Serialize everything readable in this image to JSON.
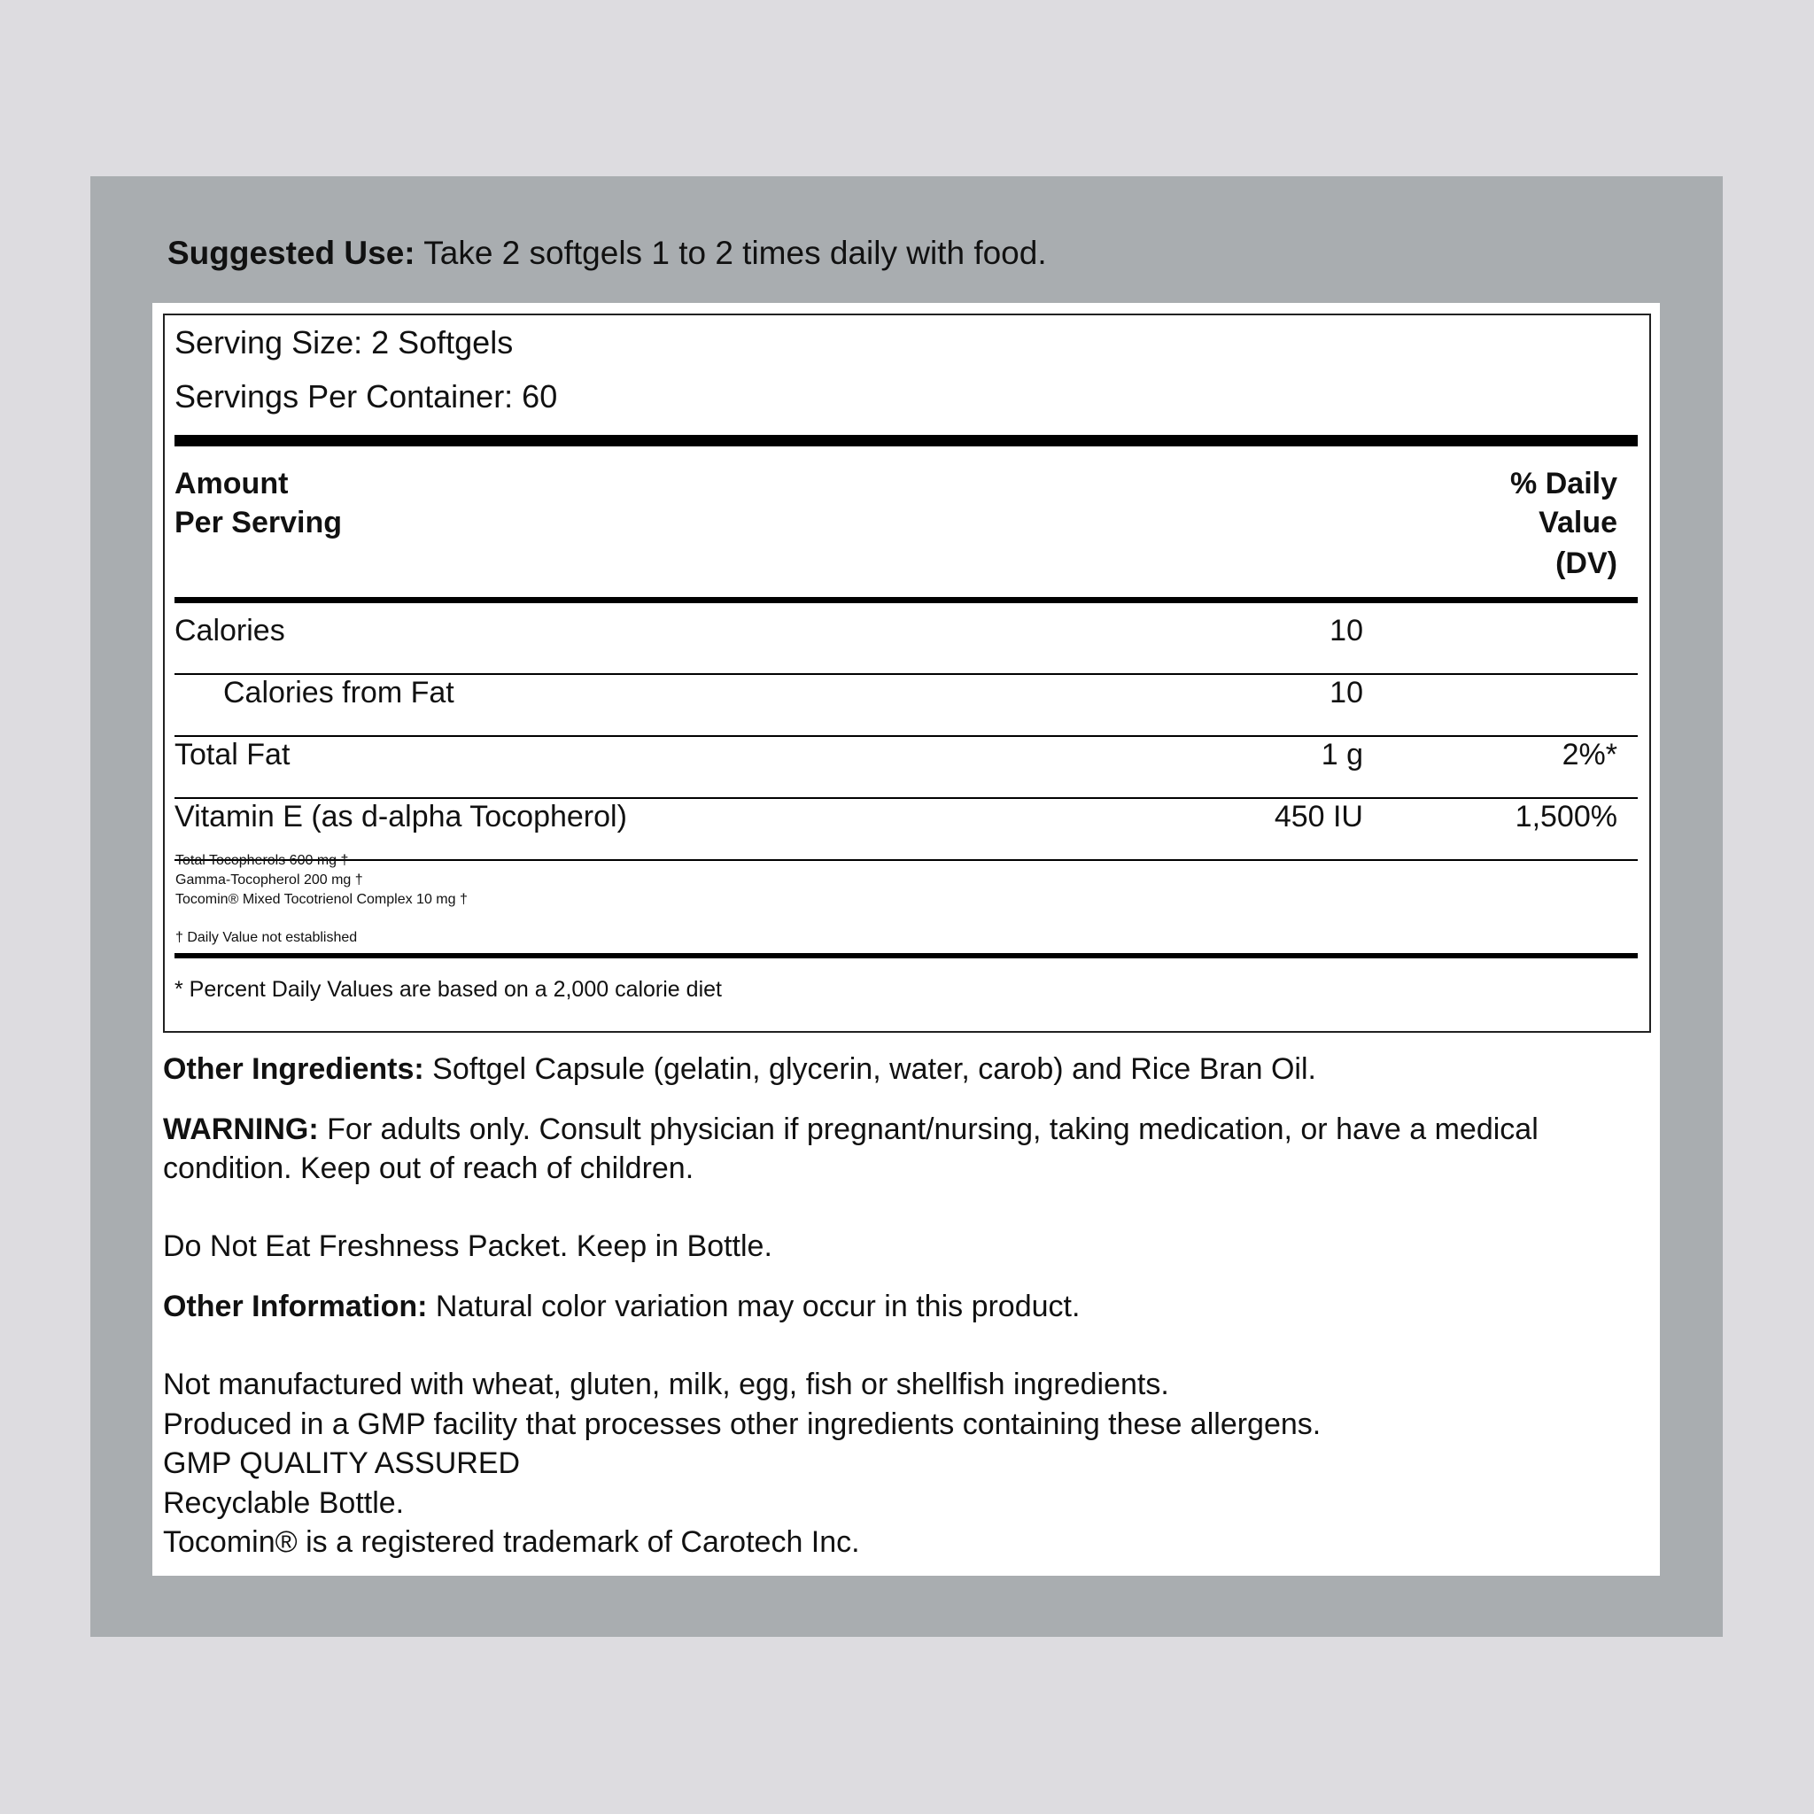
{
  "suggested_use": {
    "label": "Suggested Use:",
    "text": "Take 2 softgels 1 to 2 times daily with food."
  },
  "facts": {
    "serving_size": "Serving Size: 2 Softgels",
    "servings_per_container": "Servings Per Container: 60",
    "header": {
      "amount": [
        "Amount",
        "Per Serving"
      ],
      "daily_value": [
        "% Daily",
        "Value",
        "(DV)"
      ]
    },
    "rows": [
      {
        "name": "Calories",
        "amount": "10"
      },
      {
        "name": "Calories from Fat",
        "amount": "10"
      },
      {
        "name": "Total Fat",
        "amount": "1 g",
        "dv": "2%*"
      },
      {
        "name": "Vitamin E (as d-alpha Tocopherol)",
        "amount": "450 IU",
        "dv": "1,500%"
      }
    ],
    "notes": [
      "Total Tocopherols 600 mg †",
      "Gamma-Tocopherol 200 mg †",
      "Tocomin® Mixed Tocotrienol Complex 10 mg †"
    ],
    "dagger_note": "† Daily Value not established",
    "footnote": "* Percent Daily Values are based on a 2,000 calorie diet"
  },
  "other_ingredients": {
    "label": "Other Ingredients:",
    "text": "Softgel Capsule (gelatin, glycerin, water, carob) and Rice Bran Oil."
  },
  "warning": {
    "label": "WARNING:",
    "text": "For adults only. Consult physician if pregnant/nursing, taking medication, or have a medical condition. Keep out of reach of children."
  },
  "freshness": "Do Not Eat Freshness Packet. Keep in Bottle.",
  "other_information": {
    "label": "Other Information:",
    "text": "Natural color variation may occur in this product."
  },
  "statements": [
    "Not manufactured with wheat, gluten, milk, egg, fish or shellfish ingredients.",
    "Produced in a GMP facility that processes other ingredients containing these allergens.",
    "GMP QUALITY ASSURED",
    "Recyclable Bottle.",
    "Tocomin® is a registered trademark of Carotech Inc."
  ]
}
